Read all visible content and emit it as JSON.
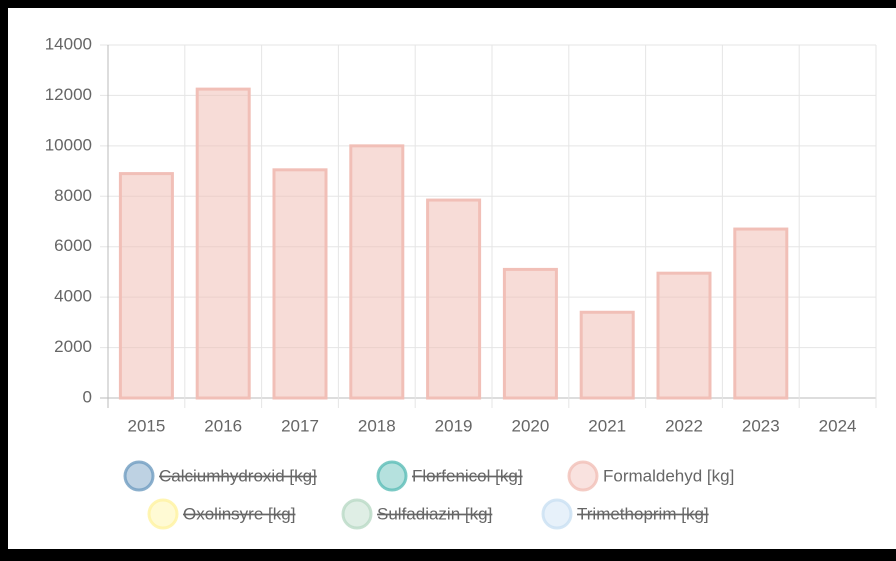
{
  "chart_data": {
    "type": "bar",
    "categories": [
      "2015",
      "2016",
      "2017",
      "2018",
      "2019",
      "2020",
      "2021",
      "2022",
      "2023",
      "2024"
    ],
    "series": [
      {
        "name": "Calciumhydroxid [kg]",
        "color": "#6f9cc0",
        "hidden": true
      },
      {
        "name": "Florfenicol [kg]",
        "color": "#5bbdb6",
        "hidden": true
      },
      {
        "name": "Formaldehyd [kg]",
        "color": "#f1bfb7",
        "hidden": false,
        "values": [
          8900,
          12250,
          9050,
          10000,
          7850,
          5100,
          3400,
          4950,
          6700,
          null
        ]
      },
      {
        "name": "Oxolinsyre [kg]",
        "color": "#fff3a0",
        "hidden": true
      },
      {
        "name": "Sulfadiazin [kg]",
        "color": "#b9d9c6",
        "hidden": true
      },
      {
        "name": "Trimethoprim [kg]",
        "color": "#c9e0f3",
        "hidden": true
      }
    ],
    "ylim": [
      0,
      14000
    ],
    "yticks": [
      0,
      2000,
      4000,
      6000,
      8000,
      10000,
      12000,
      14000
    ],
    "grid": true,
    "legend": "bottom"
  }
}
